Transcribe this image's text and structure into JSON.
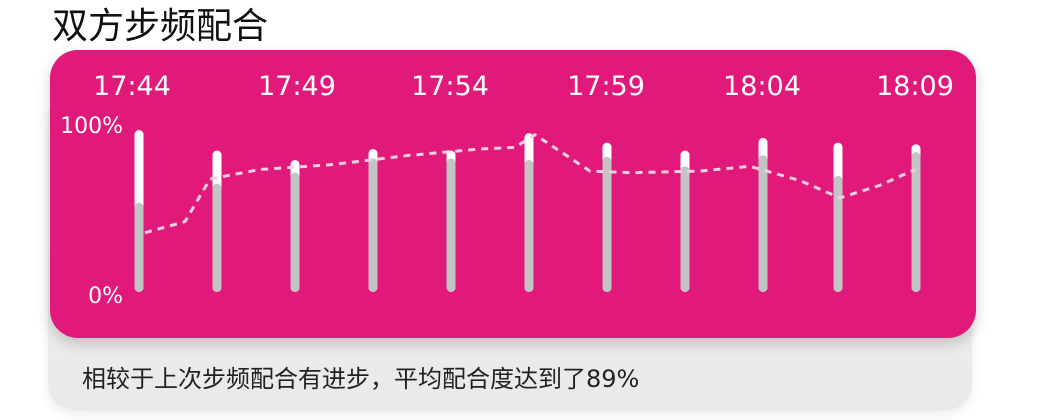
{
  "page": {
    "title": "双方步频配合",
    "summary": "相较于上次步频配合有进步，平均配合度达到了89%"
  },
  "colors": {
    "panel": "#E0197A",
    "bar_primary": "#FFFFFF",
    "bar_secondary": "#C4C4C4",
    "trend_line": "#F2D0E0"
  },
  "chart_data": {
    "type": "bar",
    "time_labels": [
      "17:44",
      "17:49",
      "17:54",
      "17:59",
      "18:04",
      "18:09"
    ],
    "y_tick_labels": [
      "100%",
      "0%"
    ],
    "ylim": [
      0,
      100
    ],
    "grid": false,
    "series": [
      {
        "values": [
          100,
          87,
          81,
          88,
          87,
          98,
          92,
          87,
          95,
          92,
          91
        ]
      },
      {
        "values": [
          54,
          66,
          73,
          82,
          82,
          81,
          83,
          77,
          84,
          71,
          86
        ]
      }
    ],
    "trend": [
      35,
      42,
      69,
      75,
      78,
      84,
      88,
      89,
      97,
      74,
      73,
      74,
      77,
      68,
      57,
      65,
      75
    ]
  }
}
